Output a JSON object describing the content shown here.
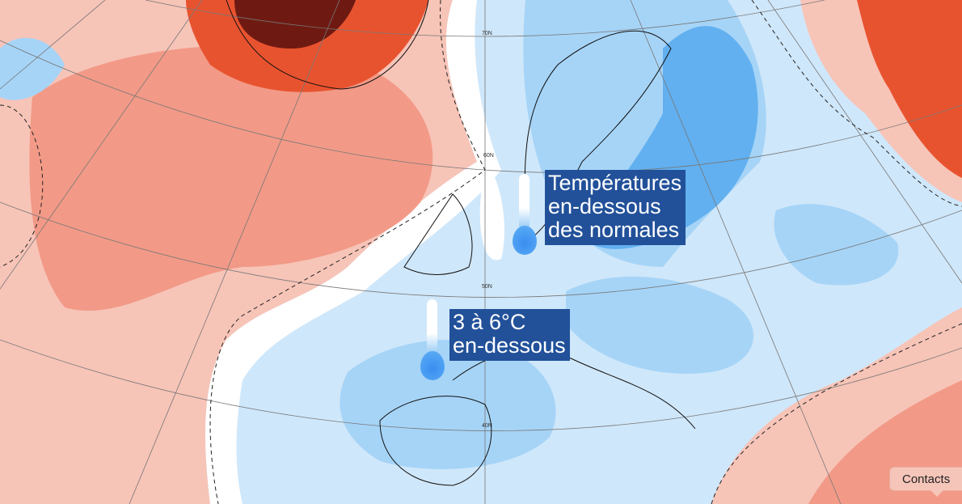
{
  "map": {
    "colors": {
      "dark_red": "#6e1a12",
      "red": "#e8532f",
      "salmon": "#f29a87",
      "pink": "#f7c4b8",
      "white": "#ffffff",
      "light_blue": "#cfe7fa",
      "blue": "#a6d4f7",
      "medium_blue": "#62b0f0"
    },
    "latitude_labels": [
      "70N",
      "60N",
      "50N",
      "40N"
    ]
  },
  "callouts": [
    {
      "lines": [
        "Températures",
        "en-dessous",
        "des normales"
      ],
      "icon": "thermometer-cold-icon"
    },
    {
      "lines": [
        "3 à 6°C",
        "en-dessous"
      ],
      "icon": "thermometer-cold-icon"
    }
  ],
  "contacts_button": {
    "label": "Contacts"
  }
}
